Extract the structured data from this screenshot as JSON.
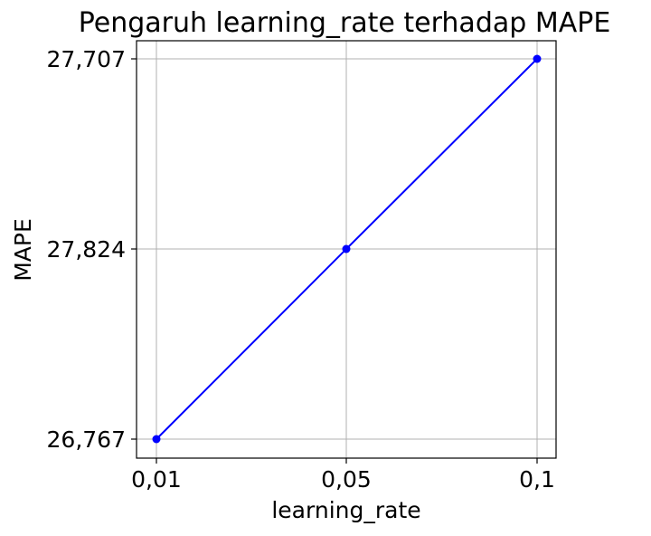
{
  "chart_data": {
    "type": "line",
    "title": "Pengaruh learning_rate terhadap MAPE",
    "xlabel": "learning_rate",
    "ylabel": "MAPE",
    "categories": [
      "0,01",
      "0,05",
      "0,1"
    ],
    "y_tick_labels": [
      "27,707",
      "27,824",
      "26,767"
    ],
    "series": [
      {
        "values": [
          "26,767",
          "27,824",
          "27,707"
        ],
        "color": "#0000ff",
        "marker": "circle"
      }
    ],
    "y_axis_kind": "categorical",
    "grid": true,
    "legend": "none"
  }
}
